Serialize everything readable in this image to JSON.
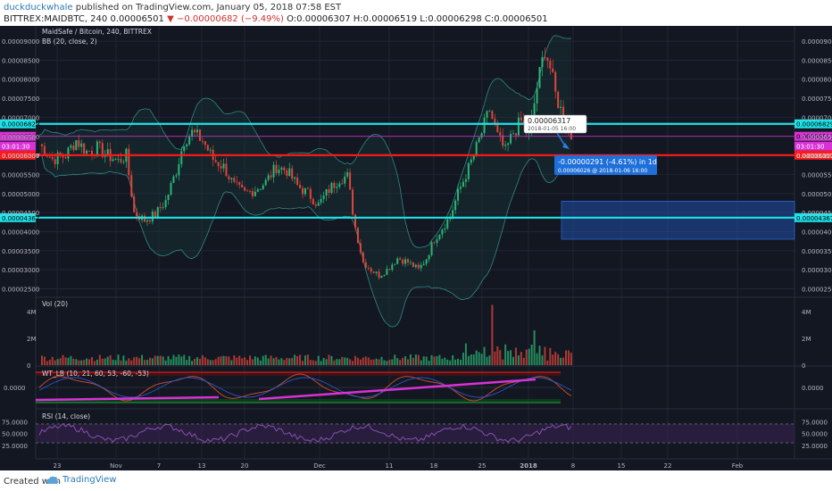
{
  "header": {
    "author": "duckduckwhale",
    "published": "published on TradingView.com, January 05, 2018 07:58 EST",
    "symbol": "BITTREX:MAIDBTC, 240",
    "last": "0.00006501",
    "change": "▼ −0.00000682 (−9.49%)",
    "ohlc": "O:0.00006307 H:0.00006519 L:0.00006298 C:0.00006501"
  },
  "footer": {
    "created_with": "Created with",
    "brand": "TradingView"
  },
  "colors": {
    "bg": "#131722",
    "grid": "#1f2633",
    "up": "#2bb673",
    "down": "#e0453a",
    "cyan": "#1ee3e8",
    "red": "#ff1a1a",
    "magenta": "#d832d6",
    "blue_box": "#1f4fa8",
    "bb": "#2f8a86",
    "rsi": "#8e55b8",
    "vol": "#5aa3c9"
  },
  "chart_data": [
    {
      "type": "candlestick",
      "title": "MaidSafe / Bitcoin, 240, BITTREX",
      "indicator": "BB (20, close, 2)",
      "ylim": [
        2.3e-05,
        9.4e-05
      ],
      "y_ticks": [
        "0.00009000",
        "0.00008500",
        "0.00008000",
        "0.00007500",
        "0.00007000",
        "0.00006500",
        "0.00006000",
        "0.00005500",
        "0.00005000",
        "0.00004500",
        "0.00004000",
        "0.00003500",
        "0.00003000",
        "0.00002500"
      ],
      "x_ticks": [
        "23",
        "Nov",
        "7",
        "13",
        "20",
        "Dec",
        "11",
        "18",
        "25",
        "2018",
        "8",
        "15",
        "22",
        "Feb"
      ],
      "close_path": [
        [
          0,
          6.3e-05
        ],
        [
          5,
          5.9e-05
        ],
        [
          10,
          6e-05
        ],
        [
          14,
          6.4e-05
        ],
        [
          18,
          6.1e-05
        ],
        [
          22,
          6.2e-05
        ],
        [
          26,
          6e-05
        ],
        [
          30,
          5.85e-05
        ],
        [
          33,
          6e-05
        ],
        [
          36,
          4.5e-05
        ],
        [
          40,
          4.3e-05
        ],
        [
          44,
          4.45e-05
        ],
        [
          48,
          4.8e-05
        ],
        [
          52,
          5.6e-05
        ],
        [
          55,
          6.4e-05
        ],
        [
          58,
          6.6e-05
        ],
        [
          62,
          6.4e-05
        ],
        [
          66,
          5.9e-05
        ],
        [
          70,
          5.7e-05
        ],
        [
          74,
          5.2e-05
        ],
        [
          78,
          5e-05
        ],
        [
          82,
          5.1e-05
        ],
        [
          86,
          5.3e-05
        ],
        [
          90,
          5.7e-05
        ],
        [
          94,
          5.6e-05
        ],
        [
          98,
          5.2e-05
        ],
        [
          102,
          5e-05
        ],
        [
          106,
          4.7e-05
        ],
        [
          110,
          5.1e-05
        ],
        [
          114,
          5.4e-05
        ],
        [
          117,
          5.45e-05
        ],
        [
          120,
          4.1e-05
        ],
        [
          123,
          3.2e-05
        ],
        [
          126,
          3e-05
        ],
        [
          129,
          2.85e-05
        ],
        [
          132,
          3e-05
        ],
        [
          136,
          3.3e-05
        ],
        [
          140,
          3.2e-05
        ],
        [
          144,
          3e-05
        ],
        [
          147,
          3.3e-05
        ],
        [
          150,
          3.8e-05
        ],
        [
          153,
          4.1e-05
        ],
        [
          156,
          4.4e-05
        ],
        [
          159,
          5e-05
        ],
        [
          162,
          5.5e-05
        ],
        [
          165,
          6e-05
        ],
        [
          168,
          6.6e-05
        ],
        [
          171,
          7.2e-05
        ],
        [
          174,
          6.5e-05
        ],
        [
          177,
          6.1e-05
        ],
        [
          180,
          6.6e-05
        ],
        [
          183,
          6.9e-05
        ],
        [
          186,
          6.5e-05
        ],
        [
          189,
          7.8e-05
        ],
        [
          192,
          8.8e-05
        ],
        [
          194,
          8.3e-05
        ],
        [
          196,
          7.6e-05
        ],
        [
          198,
          7.2e-05
        ],
        [
          200,
          6.82e-05
        ],
        [
          202,
          6.5e-05
        ]
      ],
      "horizontal_lines": [
        {
          "label": "0.00006829",
          "value": 6.829e-05,
          "color": "cyan"
        },
        {
          "label": "0.00006501",
          "value": 6.501e-05,
          "color": "magenta",
          "badge2": "03:01:30"
        },
        {
          "label": "0.00006007",
          "value": 6.007e-05,
          "color": "red"
        },
        {
          "label": "0.00004367",
          "value": 4.367e-05,
          "color": "cyan"
        }
      ],
      "price_box": {
        "y_from": 3.8e-05,
        "y_to": 4.8e-05
      },
      "annotation_1": {
        "price": "0.00006317",
        "date": "2018-01-05 16:00"
      },
      "annotation_2": {
        "line1": "-0.00000291 (-4.61%) in 1d",
        "line2": "0.00006026 @ 2018-01-06 16:00"
      }
    },
    {
      "type": "bar",
      "title": "Vol (20)",
      "y_ticks": [
        "4M",
        "2M",
        "0"
      ],
      "ylim": [
        0,
        5000000
      ]
    },
    {
      "type": "line",
      "title": "WT_LB (10, 21, 60, 53, -60, -53)",
      "y_ticks": [
        "0.0000"
      ]
    },
    {
      "type": "line",
      "title": "RSI (14, close)",
      "y_ticks": [
        "75.0000",
        "50.0000",
        "25.0000"
      ],
      "ylim": [
        0,
        100
      ]
    }
  ]
}
